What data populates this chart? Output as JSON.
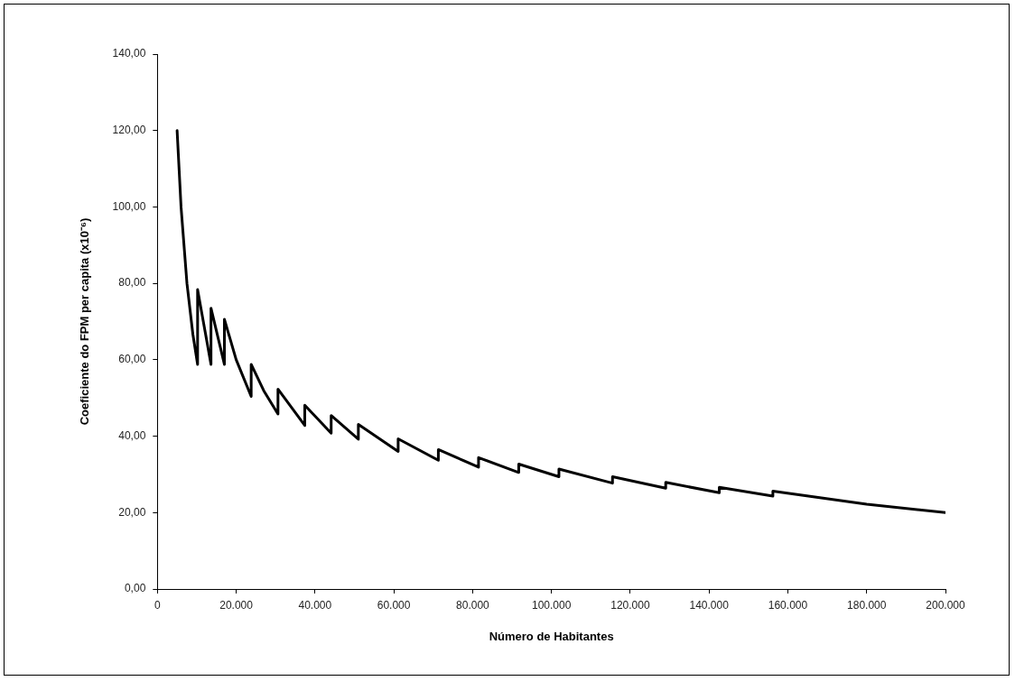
{
  "chart_data": {
    "type": "line",
    "xlabel": "Número de Habitantes",
    "ylabel": "Coeficiente do FPM per capita (x10⁻⁶)",
    "x": [
      5000,
      6000,
      7500,
      9000,
      10200,
      10200,
      13600,
      13600,
      17000,
      17000,
      20000,
      23800,
      23800,
      27000,
      30600,
      30600,
      37400,
      37400,
      44100,
      44100,
      51000,
      51000,
      61100,
      61100,
      71300,
      71300,
      81500,
      81500,
      91700,
      91700,
      101900,
      101900,
      115500,
      115500,
      129000,
      129000,
      142600,
      142600,
      156200,
      156200,
      180000,
      200000
    ],
    "series": [
      {
        "color": "#000000",
        "values": [
          120,
          100,
          80,
          66.7,
          58.8,
          78.4,
          58.8,
          73.5,
          58.8,
          70.6,
          60,
          50.4,
          58.8,
          51.9,
          45.8,
          52.3,
          42.8,
          48.1,
          40.8,
          45.4,
          39.2,
          43.1,
          36,
          39.3,
          33.7,
          36.5,
          31.9,
          34.4,
          30.5,
          32.7,
          29.4,
          31.4,
          27.7,
          29.4,
          26.4,
          27.9,
          25.2,
          26.6,
          24.3,
          25.6,
          22.2,
          20
        ]
      }
    ],
    "xlim": [
      0,
      200000
    ],
    "xticks": [
      0,
      {
        "value": 20000,
        "label": "20.000"
      },
      {
        "value": 40000,
        "label": "40.000"
      },
      {
        "value": 60000,
        "label": "60.000"
      },
      {
        "value": 80000,
        "label": "80.000"
      },
      {
        "value": 100000,
        "label": "100.000"
      },
      {
        "value": 120000,
        "label": "120.000"
      },
      {
        "value": 140000,
        "label": "140.000"
      },
      {
        "value": 160000,
        "label": "160.000"
      },
      {
        "value": 180000,
        "label": "180.000"
      },
      {
        "value": 200000,
        "label": "200.000"
      }
    ],
    "ylim": [
      0,
      140
    ],
    "yticks": [
      {
        "value": 0,
        "label": "0,00"
      },
      {
        "value": 20,
        "label": "20,00"
      },
      {
        "value": 40,
        "label": "40,00"
      },
      {
        "value": 60,
        "label": "60,00"
      },
      {
        "value": 80,
        "label": "80,00"
      },
      {
        "value": 100,
        "label": "100,00"
      },
      {
        "value": 120,
        "label": "120,00"
      },
      {
        "value": 140,
        "label": "140,00"
      }
    ],
    "grid": false,
    "legend": false,
    "marker": "none",
    "line_style": "solid"
  }
}
